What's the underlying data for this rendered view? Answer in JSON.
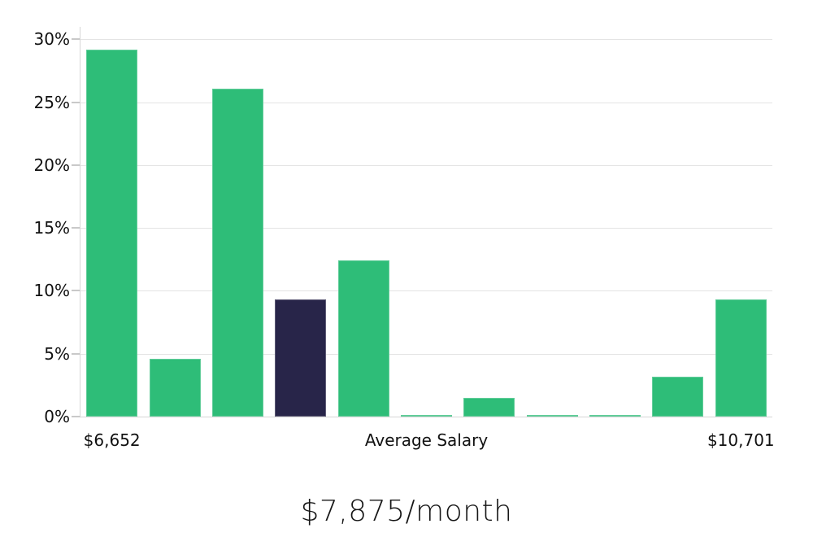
{
  "chart_data": {
    "type": "bar",
    "title": "$7,875/month",
    "categories": [
      "",
      "",
      "",
      "",
      "",
      "",
      "",
      "",
      "",
      "",
      ""
    ],
    "values": [
      29.2,
      4.6,
      26.1,
      9.3,
      12.4,
      0.1,
      1.5,
      0.1,
      0.1,
      3.2,
      9.3
    ],
    "highlight_index": 3,
    "ylim": [
      0,
      31
    ],
    "grid": true,
    "legend": false,
    "y_ticks": [
      {
        "value": 0,
        "label": "0%"
      },
      {
        "value": 5,
        "label": "5%"
      },
      {
        "value": 10,
        "label": "10%"
      },
      {
        "value": 15,
        "label": "15%"
      },
      {
        "value": 20,
        "label": "20%"
      },
      {
        "value": 25,
        "label": "25%"
      },
      {
        "value": 30,
        "label": "30%"
      }
    ],
    "x_labels": [
      {
        "category_index": 0,
        "label": "$6,652"
      },
      {
        "category_index": 5,
        "label": "Average Salary"
      },
      {
        "category_index": 10,
        "label": "$10,701"
      }
    ],
    "colors": {
      "bar": "#2ebd78",
      "highlight_bar": "#282549",
      "gridline": "#e4e4e4",
      "axis": "#d6d6d6",
      "tick": "#c9c9c9",
      "text": "#111111"
    }
  }
}
